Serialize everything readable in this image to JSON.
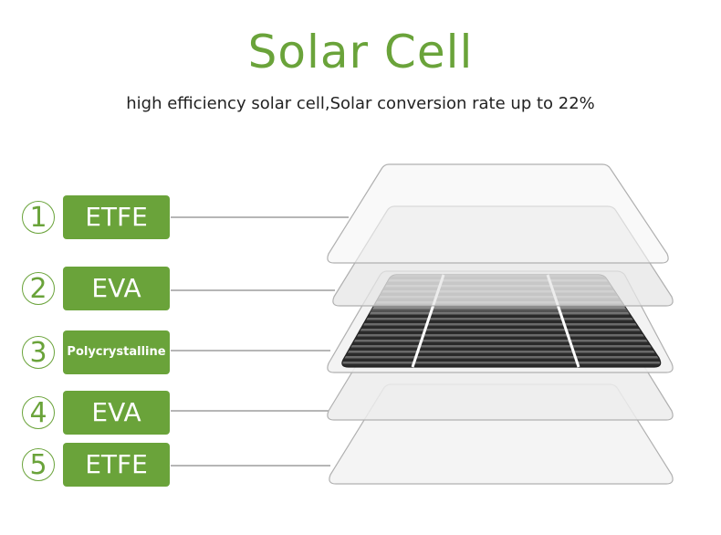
{
  "title": "Solar Cell",
  "subtitle": "high efficiency solar cell,Solar conversion rate up to 22%",
  "accent_color": "#6aa33a",
  "layers": [
    {
      "number": "1",
      "label": "ETFE"
    },
    {
      "number": "2",
      "label": "EVA"
    },
    {
      "number": "3",
      "label": "Polycrystalline"
    },
    {
      "number": "4",
      "label": "EVA"
    },
    {
      "number": "5",
      "label": "ETFE"
    }
  ]
}
